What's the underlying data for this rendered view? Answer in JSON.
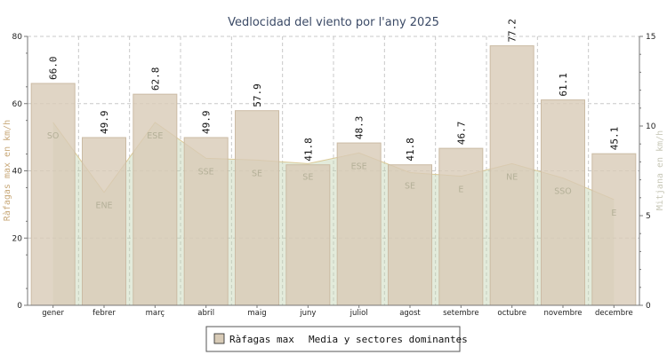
{
  "colors": {
    "bar_fill": "#d8cbb7",
    "bar_stroke": "#cbbba4",
    "area_fill": "#c2d2b0",
    "area_line": "#dbc996",
    "grid": "#c8c8c8",
    "axis": "#777777"
  },
  "chart_data": {
    "type": "bar",
    "title": "Vedlocidad del viento por l'any 2025",
    "categories": [
      "gener",
      "febrer",
      "març",
      "abril",
      "maig",
      "juny",
      "juliol",
      "agost",
      "setembre",
      "octubre",
      "novembre",
      "decembre"
    ],
    "ylabel": "Ràfagas max en km/h",
    "y2label": "Mitjana en km/h",
    "ylim": [
      0,
      80
    ],
    "y_ticks": [
      0,
      20,
      40,
      60,
      80
    ],
    "y2lim": [
      0,
      15
    ],
    "y2_ticks": [
      0,
      5,
      10,
      15
    ],
    "grid": true,
    "legend_position": "bottom-center",
    "series": [
      {
        "name": "Ràfagas max",
        "type": "bar",
        "axis": "left",
        "values": [
          66.0,
          49.9,
          62.8,
          49.9,
          57.9,
          41.8,
          48.3,
          41.8,
          46.7,
          77.2,
          61.1,
          45.1
        ],
        "labels": [
          "66.0",
          "49.9",
          "62.8",
          "49.9",
          "57.9",
          "41.8",
          "48.3",
          "41.8",
          "46.7",
          "77.2",
          "61.1",
          "45.1"
        ]
      },
      {
        "name": "Media y sectores dominantes",
        "type": "area",
        "axis": "right",
        "values": [
          10.2,
          6.3,
          10.2,
          8.2,
          8.1,
          7.9,
          8.5,
          7.4,
          7.2,
          7.9,
          7.1,
          5.9
        ],
        "sectors": [
          "SO",
          "ENE",
          "ESE",
          "SSE",
          "SE",
          "SE",
          "ESE",
          "SE",
          "E",
          "NE",
          "SSO",
          "E"
        ]
      }
    ]
  }
}
